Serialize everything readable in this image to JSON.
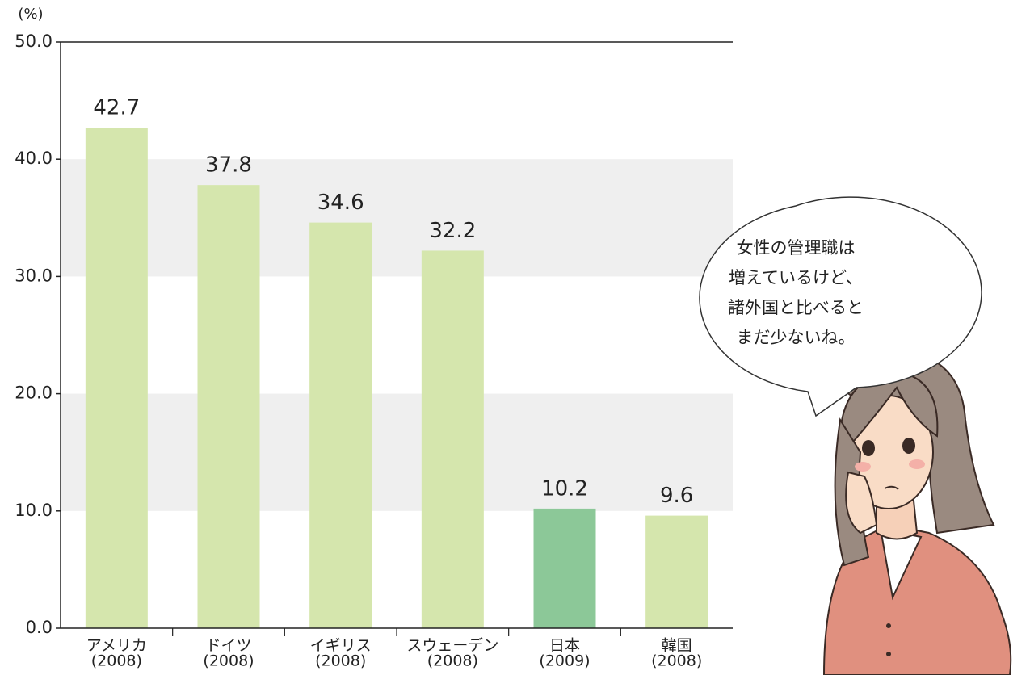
{
  "chart_data": {
    "type": "bar",
    "y_unit_label": "(%)",
    "categories": [
      [
        "アメリカ",
        "(2008)"
      ],
      [
        "ドイツ",
        "(2008)"
      ],
      [
        "イギリス",
        "(2008)"
      ],
      [
        "スウェーデン",
        "(2008)"
      ],
      [
        "日本",
        "(2009)"
      ],
      [
        "韓国",
        "(2008)"
      ]
    ],
    "values": [
      42.7,
      37.8,
      34.6,
      32.2,
      10.2,
      9.6
    ],
    "colors": [
      "#d5e6ad",
      "#d5e6ad",
      "#d5e6ad",
      "#d5e6ad",
      "#8cc898",
      "#d5e6ad"
    ],
    "ylim": [
      0,
      50
    ],
    "yticks": [
      {
        "value": 0,
        "label": "0.0"
      },
      {
        "value": 10,
        "label": "10.0"
      },
      {
        "value": 20,
        "label": "20.0"
      },
      {
        "value": 30,
        "label": "30.0"
      },
      {
        "value": 40,
        "label": "40.0"
      },
      {
        "value": 50,
        "label": "50.0"
      }
    ],
    "bands": true,
    "annotation": [
      "女性の管理職は",
      "増えているけど、",
      "諸外国と比べると",
      "まだ少ないね。"
    ]
  }
}
